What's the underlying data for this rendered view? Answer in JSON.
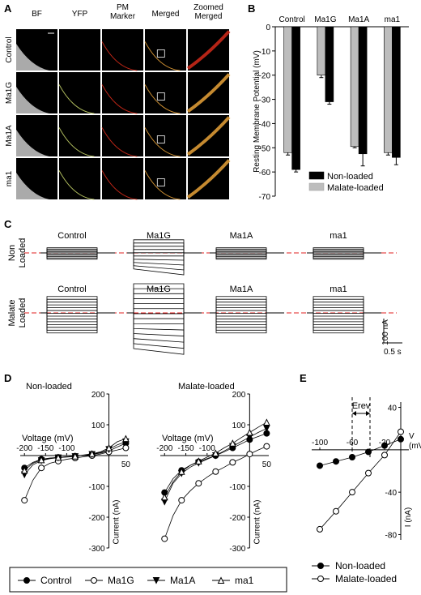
{
  "panel_letters": [
    "A",
    "B",
    "C",
    "D",
    "E"
  ],
  "panel_a": {
    "column_headers": [
      "BF",
      "YFP",
      "PM\nMarker",
      "Merged",
      "Zoomed\nMerged"
    ],
    "row_labels": [
      "Control",
      "Ma1G",
      "Ma1A",
      "ma1"
    ],
    "colors": {
      "membrane": "#d42a1a",
      "yfp": "#c8d66a",
      "merged": "#e8a238",
      "background": "#000000",
      "bf": "#c8c8c8"
    }
  },
  "panel_c": {
    "row_labels": [
      "Non\nLoaded",
      "Malate\nLoaded"
    ],
    "column_labels": [
      "Control",
      "Ma1G",
      "Ma1A",
      "ma1"
    ],
    "scale_current": "100 nA",
    "scale_time": "0.5 s",
    "baseline_color": "#e02020"
  },
  "panel_d": {
    "left_title": "Non-loaded",
    "right_title": "Malate-loaded",
    "x_label": "Voltage (mV)",
    "y_label": "Current (nA)",
    "x_ticks": [
      "-200",
      "-150",
      "-100",
      "50"
    ],
    "y_ticks": [
      "200",
      "100",
      "-100",
      "-200",
      "-300"
    ]
  },
  "panel_e": {
    "annotation": "Erev",
    "x_label": "V\n(mV)",
    "y_label": "I (nA)",
    "x_ticks": [
      "-100",
      "-60",
      "-20"
    ],
    "y_ticks": [
      "40",
      "-40",
      "-80"
    ]
  },
  "legend_d": [
    "Control",
    "Ma1G",
    "Ma1A",
    "ma1"
  ],
  "legend_e": [
    "Non-loaded",
    "Malate-loaded"
  ],
  "chart_data": [
    {
      "type": "bar",
      "panel": "B",
      "categories": [
        "Control",
        "Ma1G",
        "Ma1A",
        "ma1"
      ],
      "ylabel": "Resting Membrane Potential (mV)",
      "ylim": [
        -70,
        0
      ],
      "yticks": [
        0,
        -10,
        -20,
        -30,
        -40,
        -50,
        -60,
        -70
      ],
      "legend_position": "bottom-right",
      "series": [
        {
          "name": "Non-loaded",
          "color": "#000000",
          "values": [
            -59,
            -31,
            -52.5,
            -54
          ],
          "errors": [
            1,
            1,
            5,
            3
          ]
        },
        {
          "name": "Malate-loaded",
          "color": "#bdbdbd",
          "values": [
            -52,
            -20,
            -49.5,
            -52
          ],
          "errors": [
            1,
            1,
            0.5,
            1
          ]
        }
      ]
    },
    {
      "type": "line",
      "panel": "D-left",
      "title": "Non-loaded",
      "xlabel": "Voltage (mV)",
      "ylabel": "Current (nA)",
      "xlim": [
        -210,
        45
      ],
      "ylim": [
        -300,
        200
      ],
      "x": [
        -200,
        -180,
        -160,
        -140,
        -120,
        -100,
        -80,
        -60,
        -40,
        -20,
        0,
        20,
        40
      ],
      "series": [
        {
          "name": "Control",
          "marker": "filled-circle",
          "values": [
            -40,
            -22,
            -12,
            -8,
            -6,
            -4,
            -2,
            1,
            4,
            8,
            15,
            28,
            40
          ]
        },
        {
          "name": "Ma1G",
          "marker": "open-circle",
          "values": [
            -145,
            -80,
            -40,
            -25,
            -18,
            -12,
            -8,
            -4,
            0,
            5,
            12,
            18,
            25
          ]
        },
        {
          "name": "Ma1A",
          "marker": "filled-triangle-down",
          "values": [
            -62,
            -30,
            -16,
            -10,
            -7,
            -5,
            -3,
            1,
            4,
            10,
            20,
            35,
            45
          ]
        },
        {
          "name": "ma1",
          "marker": "open-triangle-up",
          "values": [
            -48,
            -25,
            -14,
            -9,
            -6,
            -4,
            -2,
            2,
            6,
            12,
            25,
            45,
            55
          ]
        }
      ]
    },
    {
      "type": "line",
      "panel": "D-right",
      "title": "Malate-loaded",
      "xlabel": "Voltage (mV)",
      "ylabel": "Current (nA)",
      "xlim": [
        -210,
        45
      ],
      "ylim": [
        -300,
        200
      ],
      "x": [
        -200,
        -180,
        -160,
        -140,
        -120,
        -100,
        -80,
        -60,
        -40,
        -20,
        0,
        20,
        40
      ],
      "series": [
        {
          "name": "Control",
          "marker": "filled-circle",
          "values": [
            -120,
            -75,
            -48,
            -32,
            -20,
            -10,
            0,
            12,
            25,
            38,
            52,
            62,
            72
          ]
        },
        {
          "name": "Ma1G",
          "marker": "open-circle",
          "values": [
            -270,
            -195,
            -145,
            -115,
            -90,
            -70,
            -52,
            -38,
            -22,
            -10,
            5,
            18,
            30
          ]
        },
        {
          "name": "Ma1A",
          "marker": "filled-triangle-down",
          "values": [
            -150,
            -90,
            -58,
            -38,
            -24,
            -12,
            0,
            15,
            30,
            45,
            60,
            75,
            88
          ]
        },
        {
          "name": "ma1",
          "marker": "open-triangle-up",
          "values": [
            -135,
            -85,
            -52,
            -32,
            -18,
            -5,
            8,
            25,
            40,
            58,
            75,
            92,
            108
          ]
        }
      ]
    },
    {
      "type": "line",
      "panel": "E",
      "xlabel": "V (mV)",
      "ylabel": "I (nA)",
      "xlim": [
        -110,
        0
      ],
      "ylim": [
        -80,
        40
      ],
      "legend_position": "bottom",
      "series": [
        {
          "name": "Non-loaded",
          "marker": "filled-circle",
          "x": [
            -100,
            -80,
            -60,
            -40,
            -20,
            0
          ],
          "values": [
            -15,
            -11,
            -7,
            -2,
            4,
            10
          ]
        },
        {
          "name": "Malate-loaded",
          "marker": "open-circle",
          "x": [
            -100,
            -80,
            -60,
            -40,
            -20,
            0
          ],
          "values": [
            -75,
            -58,
            -40,
            -22,
            -5,
            17
          ]
        }
      ],
      "erev": [
        -60,
        -38
      ]
    }
  ]
}
